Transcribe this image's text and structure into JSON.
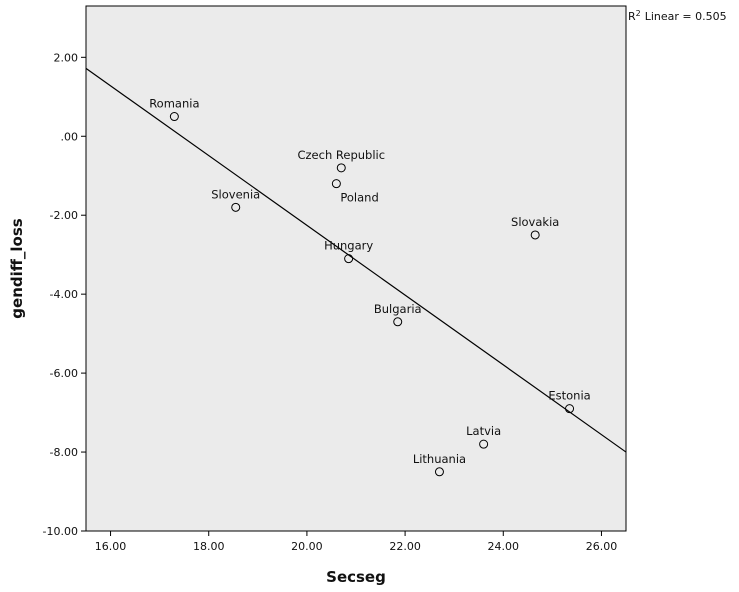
{
  "chart_data": {
    "type": "scatter",
    "xlabel": "Secseg",
    "ylabel": "gendiff_loss",
    "xlim": [
      15.5,
      26.5
    ],
    "ylim": [
      -10.0,
      3.3
    ],
    "x_ticks": [
      16,
      18,
      20,
      22,
      24,
      26
    ],
    "y_ticks": [
      2,
      0,
      -2,
      -4,
      -6,
      -8,
      -10
    ],
    "x_tick_labels": [
      "16.00",
      "18.00",
      "20.00",
      "22.00",
      "24.00",
      "26.00"
    ],
    "y_tick_labels": [
      "2.00",
      ".00",
      "-2.00",
      "-4.00",
      "-6.00",
      "-8.00",
      "-10.00"
    ],
    "grid": false,
    "background": "#ebebeb",
    "points": [
      {
        "label": "Romania",
        "x": 17.3,
        "y": 0.5
      },
      {
        "label": "Czech Republic",
        "x": 20.7,
        "y": -0.8
      },
      {
        "label": "Poland",
        "x": 20.6,
        "y": -1.2
      },
      {
        "label": "Slovenia",
        "x": 18.55,
        "y": -1.8
      },
      {
        "label": "Slovakia",
        "x": 24.65,
        "y": -2.5
      },
      {
        "label": "Hungary",
        "x": 20.85,
        "y": -3.1
      },
      {
        "label": "Bulgaria",
        "x": 21.85,
        "y": -4.7
      },
      {
        "label": "Estonia",
        "x": 25.35,
        "y": -6.9
      },
      {
        "label": "Latvia",
        "x": 23.6,
        "y": -7.8
      },
      {
        "label": "Lithuania",
        "x": 22.7,
        "y": -8.5
      }
    ],
    "fit_line": {
      "type": "linear",
      "x": [
        15.5,
        26.5
      ],
      "y": [
        1.72,
        -8.0
      ]
    },
    "r2_prefix": "R",
    "r2_superscript": "2",
    "r2_text": "Linear = 0.505"
  }
}
